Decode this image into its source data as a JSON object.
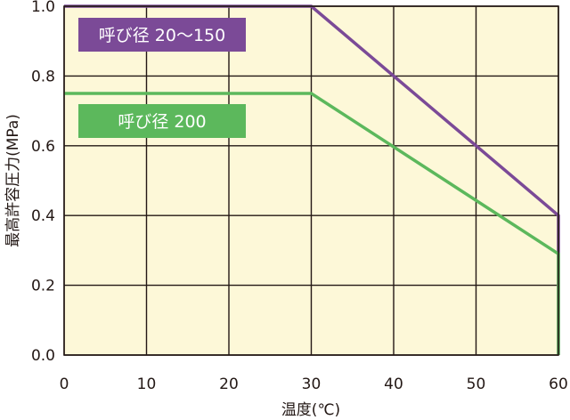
{
  "chart_data": {
    "type": "line",
    "xlabel": "温度(℃)",
    "ylabel": "最高許容圧力(MPa)",
    "xlim": [
      0,
      60
    ],
    "ylim": [
      0,
      1.0
    ],
    "x_ticks": [
      "0",
      "10",
      "20",
      "30",
      "40",
      "50",
      "60"
    ],
    "y_ticks": [
      "0.0",
      "0.2",
      "0.4",
      "0.6",
      "0.8",
      "1.0"
    ],
    "grid": true,
    "background_color": "#fdf8d8",
    "legend_placement": "top-left",
    "series": [
      {
        "name": "呼び径 20〜150",
        "color": "#7b4a97",
        "points": [
          [
            0,
            1.0
          ],
          [
            30,
            1.0
          ],
          [
            60,
            0.4
          ],
          [
            60,
            0.0
          ]
        ]
      },
      {
        "name": "呼び径 200",
        "color": "#5cb85c",
        "points": [
          [
            0,
            0.75
          ],
          [
            30,
            0.75
          ],
          [
            60,
            0.29
          ],
          [
            60,
            0.0
          ]
        ]
      }
    ]
  }
}
